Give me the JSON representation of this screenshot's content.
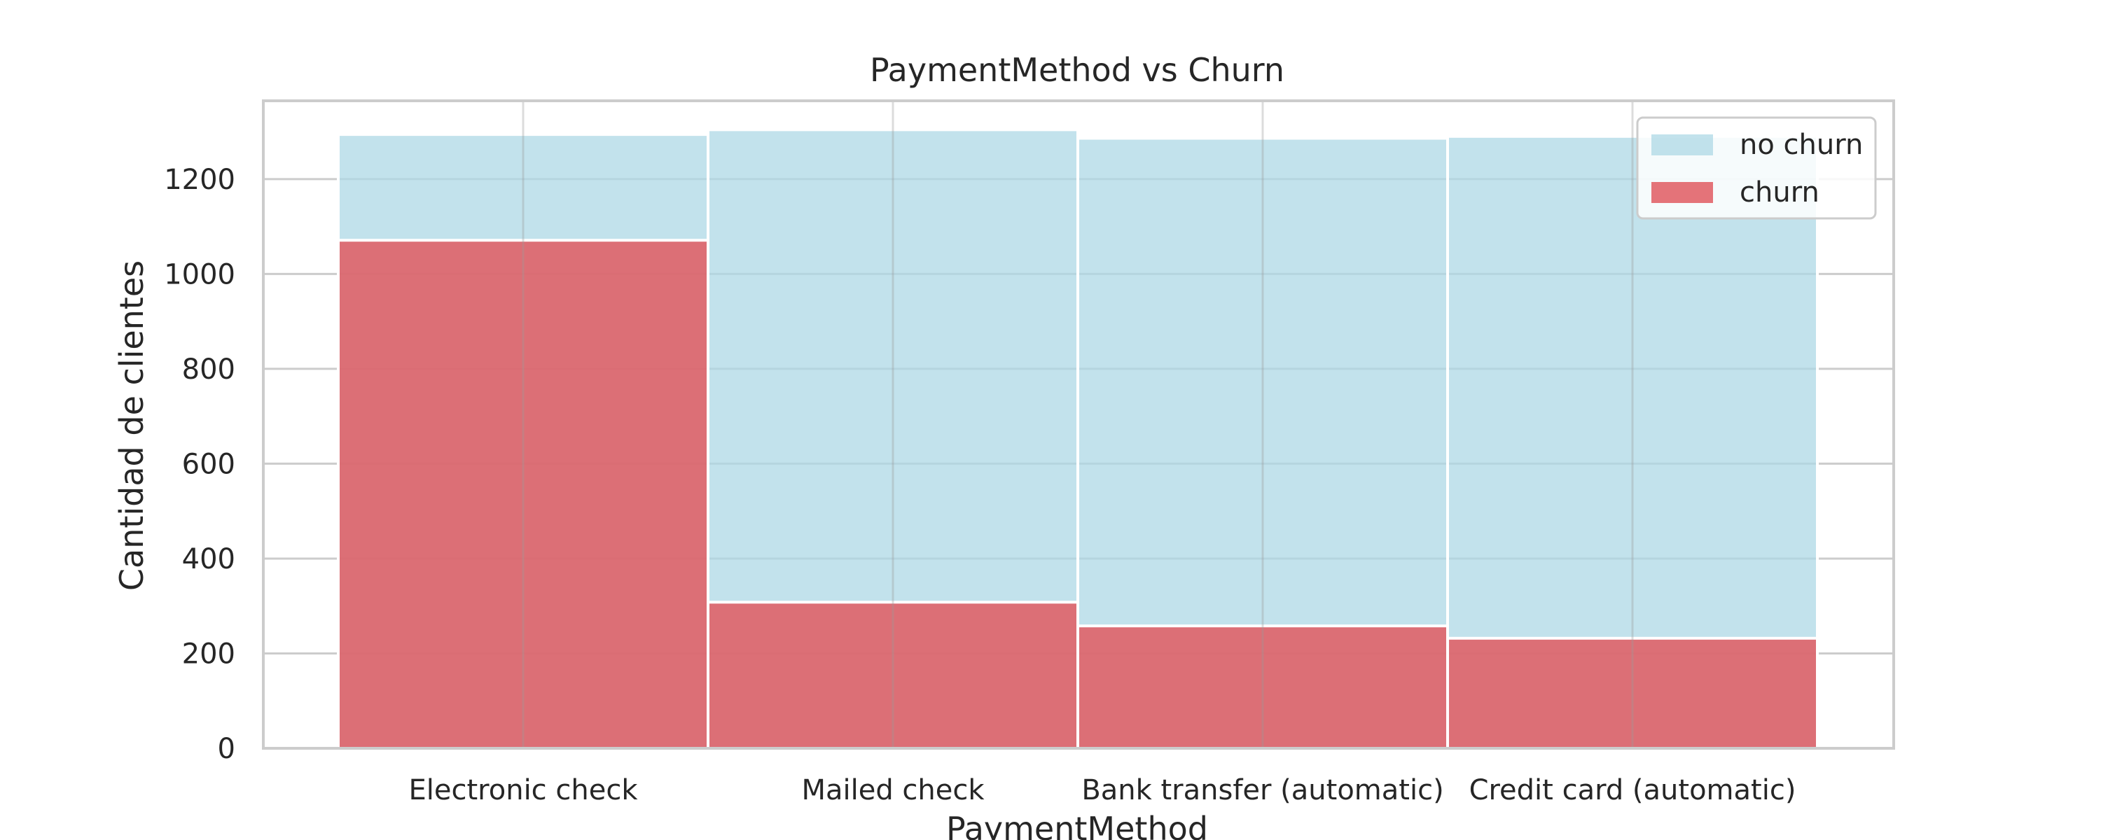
{
  "chart_data": {
    "type": "bar",
    "stacking": "overlay",
    "title": "PaymentMethod vs Churn",
    "xlabel": "PaymentMethod",
    "ylabel": "Cantidad de clientes",
    "categories": [
      "Electronic check",
      "Mailed check",
      "Bank transfer (automatic)",
      "Credit card (automatic)"
    ],
    "series": [
      {
        "name": "no churn",
        "values": [
          1294,
          1304,
          1286,
          1290
        ],
        "color": "#add8e6",
        "opacity": 0.75
      },
      {
        "name": "churn",
        "values": [
          1071,
          308,
          258,
          232
        ],
        "color": "#e05a62",
        "opacity": 0.85
      }
    ],
    "yticks": [
      0,
      200,
      400,
      600,
      800,
      1000,
      1200
    ],
    "ylim": [
      0,
      1365
    ],
    "grid": true,
    "legend_position": "top-right"
  }
}
